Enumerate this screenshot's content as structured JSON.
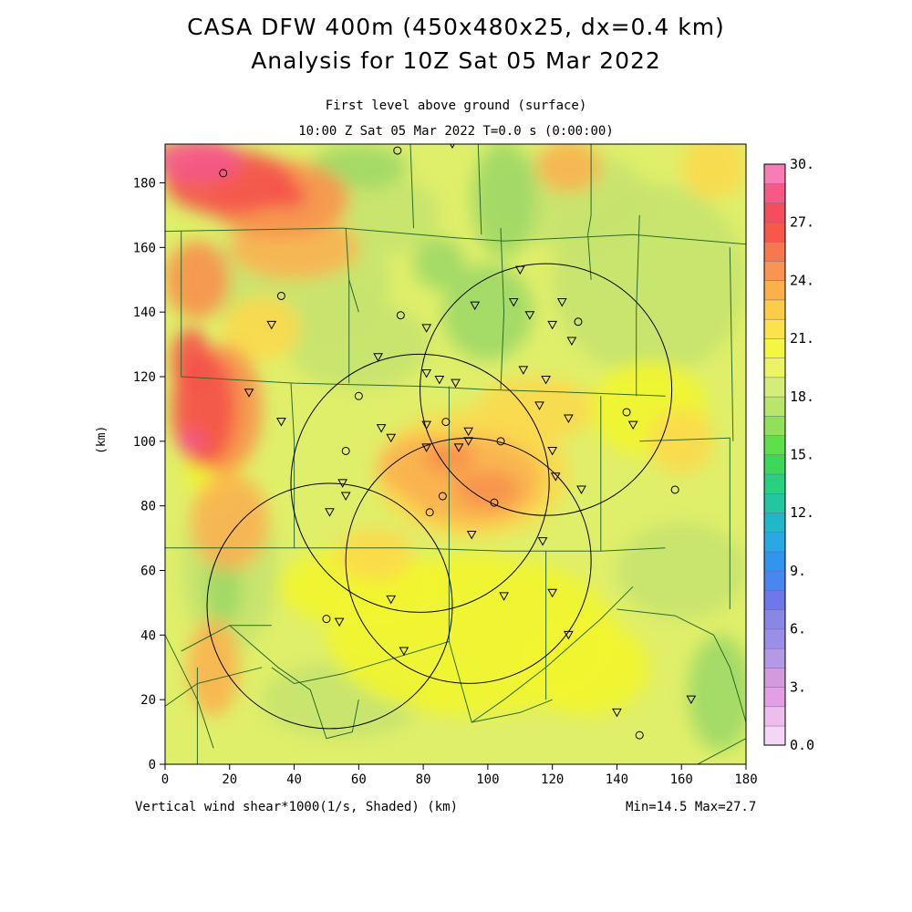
{
  "title_line1": "CASA DFW 400m (450x480x25, dx=0.4 km)",
  "title_line2": "Analysis for 10Z Sat 05 Mar 2022",
  "subtitle_line1": "First level above ground (surface)",
  "subtitle_line2": "10:00 Z Sat 05 Mar 2022    T=0.0 s (0:00:00)",
  "footer_left": "Vertical wind shear*1000(1/s, Shaded)  (km)",
  "footer_right": "Min=14.5 Max=27.7",
  "y_unit": "(km)",
  "x_axis": {
    "min": 0,
    "max": 180,
    "ticks": [
      "0",
      "20",
      "40",
      "60",
      "80",
      "100",
      "120",
      "140",
      "160",
      "180"
    ]
  },
  "y_axis": {
    "min": 0,
    "max": 192,
    "ticks": [
      "0",
      "20",
      "40",
      "60",
      "80",
      "100",
      "120",
      "140",
      "160",
      "180"
    ]
  },
  "colorbar": {
    "labels": [
      "0.0",
      "3.",
      "6.",
      "9.",
      "12.",
      "15.",
      "18.",
      "21.",
      "24.",
      "27.",
      "30."
    ],
    "colors": [
      "#f6d6f6",
      "#edbdec",
      "#e49ee3",
      "#d49add",
      "#b49ae6",
      "#9b8ee8",
      "#8a86e4",
      "#6f78ea",
      "#4a86ef",
      "#2f95ee",
      "#2aa8e3",
      "#20b8c8",
      "#22c6a0",
      "#28d080",
      "#3cd85a",
      "#5ee04a",
      "#90e05a",
      "#b8e66a",
      "#d4ec78",
      "#ecf465",
      "#f4f640",
      "#fde24a",
      "#fdcc48",
      "#fbb04a",
      "#f99550",
      "#f8784e",
      "#f75848",
      "#f54c60",
      "#f45a85",
      "#f77eb4"
    ]
  },
  "field_colors": {
    "base": "#e0ef6a",
    "light_green": "#c5e36e",
    "green": "#9fd866",
    "yellow": "#f1f52e",
    "gold": "#fbd94c",
    "orange": "#f9b350",
    "dark_orange": "#f7914e",
    "red": "#f4534a",
    "pink": "#f4578b"
  },
  "radars": [
    {
      "cx": 118,
      "cy": 116,
      "r": 39
    },
    {
      "cx": 79,
      "cy": 87,
      "r": 40
    },
    {
      "cx": 94,
      "cy": 63,
      "r": 38
    },
    {
      "cx": 51,
      "cy": 49,
      "r": 38
    }
  ],
  "stations": [
    [
      18,
      183,
      "c"
    ],
    [
      72,
      190,
      "c"
    ],
    [
      89,
      192,
      "t"
    ],
    [
      36,
      145,
      "c"
    ],
    [
      33,
      136,
      "t"
    ],
    [
      73,
      139,
      "c"
    ],
    [
      81,
      135,
      "t"
    ],
    [
      96,
      142,
      "t"
    ],
    [
      108,
      143,
      "t"
    ],
    [
      110,
      153,
      "t"
    ],
    [
      113,
      139,
      "t"
    ],
    [
      120,
      136,
      "t"
    ],
    [
      123,
      143,
      "t"
    ],
    [
      128,
      137,
      "c"
    ],
    [
      126,
      131,
      "t"
    ],
    [
      66,
      126,
      "t"
    ],
    [
      81,
      121,
      "t"
    ],
    [
      85,
      119,
      "t"
    ],
    [
      90,
      118,
      "t"
    ],
    [
      111,
      122,
      "t"
    ],
    [
      118,
      119,
      "t"
    ],
    [
      26,
      115,
      "t"
    ],
    [
      60,
      114,
      "c"
    ],
    [
      36,
      106,
      "t"
    ],
    [
      67,
      104,
      "t"
    ],
    [
      70,
      101,
      "t"
    ],
    [
      81,
      105,
      "t"
    ],
    [
      87,
      106,
      "c"
    ],
    [
      94,
      103,
      "t"
    ],
    [
      116,
      111,
      "t"
    ],
    [
      125,
      107,
      "t"
    ],
    [
      143,
      109,
      "c"
    ],
    [
      145,
      105,
      "t"
    ],
    [
      56,
      97,
      "c"
    ],
    [
      81,
      98,
      "t"
    ],
    [
      91,
      98,
      "t"
    ],
    [
      94,
      100,
      "t"
    ],
    [
      104,
      100,
      "c"
    ],
    [
      120,
      97,
      "t"
    ],
    [
      121,
      89,
      "t"
    ],
    [
      129,
      85,
      "t"
    ],
    [
      158,
      85,
      "c"
    ],
    [
      55,
      87,
      "t"
    ],
    [
      56,
      83,
      "t"
    ],
    [
      51,
      78,
      "t"
    ],
    [
      86,
      83,
      "c"
    ],
    [
      82,
      78,
      "c"
    ],
    [
      102,
      81,
      "c"
    ],
    [
      95,
      71,
      "t"
    ],
    [
      117,
      69,
      "t"
    ],
    [
      70,
      51,
      "t"
    ],
    [
      105,
      52,
      "t"
    ],
    [
      120,
      53,
      "t"
    ],
    [
      50,
      45,
      "c"
    ],
    [
      54,
      44,
      "t"
    ],
    [
      74,
      35,
      "t"
    ],
    [
      125,
      40,
      "t"
    ],
    [
      140,
      16,
      "t"
    ],
    [
      147,
      9,
      "c"
    ],
    [
      163,
      20,
      "t"
    ]
  ]
}
